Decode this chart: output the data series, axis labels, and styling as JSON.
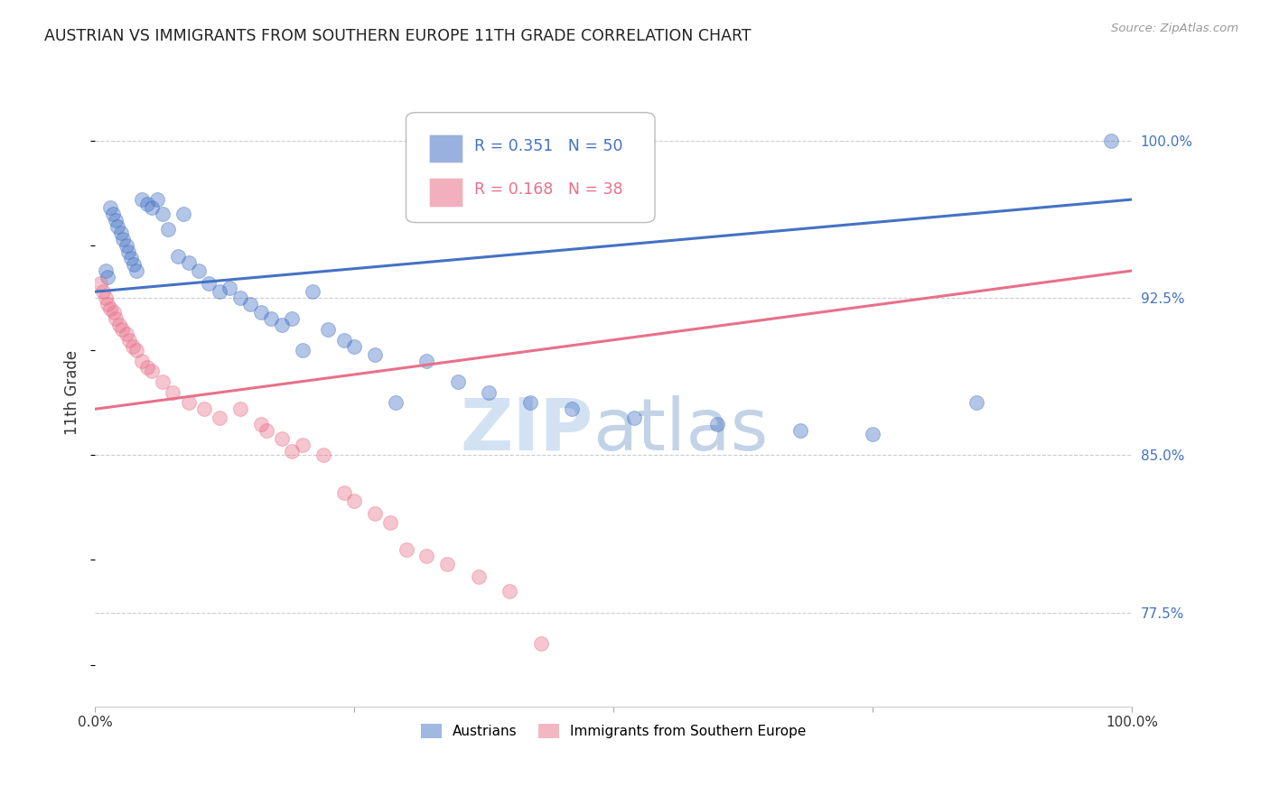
{
  "title": "AUSTRIAN VS IMMIGRANTS FROM SOUTHERN EUROPE 11TH GRADE CORRELATION CHART",
  "source": "Source: ZipAtlas.com",
  "ylabel": "11th Grade",
  "xlim": [
    0,
    100
  ],
  "ylim": [
    73,
    103
  ],
  "yticks": [
    77.5,
    85.0,
    92.5,
    100.0
  ],
  "xticks": [
    0,
    25,
    50,
    75,
    100
  ],
  "xtick_labels": [
    "0.0%",
    "",
    "",
    "",
    "100.0%"
  ],
  "ytick_labels": [
    "77.5%",
    "85.0%",
    "92.5%",
    "100.0%"
  ],
  "blue_color": "#4472C4",
  "pink_color": "#E8708A",
  "blue_label": "Austrians",
  "pink_label": "Immigrants from Southern Europe",
  "legend_R_blue": "R = 0.351",
  "legend_N_blue": "N = 50",
  "legend_R_pink": "R = 0.168",
  "legend_N_pink": "N = 38",
  "watermark_zip": "ZIP",
  "watermark_atlas": "atlas",
  "blue_scatter_x": [
    1.0,
    1.2,
    1.5,
    1.7,
    2.0,
    2.2,
    2.5,
    2.7,
    3.0,
    3.2,
    3.5,
    3.7,
    4.0,
    4.5,
    5.0,
    5.5,
    6.0,
    6.5,
    7.0,
    8.0,
    8.5,
    9.0,
    10.0,
    11.0,
    12.0,
    13.0,
    14.0,
    15.0,
    16.0,
    17.0,
    18.0,
    19.0,
    20.0,
    21.0,
    22.5,
    24.0,
    25.0,
    27.0,
    29.0,
    32.0,
    35.0,
    38.0,
    42.0,
    46.0,
    52.0,
    60.0,
    68.0,
    75.0,
    85.0,
    98.0
  ],
  "blue_scatter_y": [
    93.8,
    93.5,
    96.8,
    96.5,
    96.2,
    95.9,
    95.6,
    95.3,
    95.0,
    94.7,
    94.4,
    94.1,
    93.8,
    97.2,
    97.0,
    96.8,
    97.2,
    96.5,
    95.8,
    94.5,
    96.5,
    94.2,
    93.8,
    93.2,
    92.8,
    93.0,
    92.5,
    92.2,
    91.8,
    91.5,
    91.2,
    91.5,
    90.0,
    92.8,
    91.0,
    90.5,
    90.2,
    89.8,
    87.5,
    89.5,
    88.5,
    88.0,
    87.5,
    87.2,
    86.8,
    86.5,
    86.2,
    86.0,
    87.5,
    100.0
  ],
  "pink_scatter_x": [
    0.5,
    0.8,
    1.0,
    1.2,
    1.5,
    1.8,
    2.0,
    2.3,
    2.6,
    3.0,
    3.3,
    3.6,
    4.0,
    4.5,
    5.0,
    5.5,
    6.5,
    7.5,
    9.0,
    10.5,
    12.0,
    14.0,
    16.0,
    16.5,
    18.0,
    19.0,
    20.0,
    22.0,
    24.0,
    25.0,
    27.0,
    28.5,
    30.0,
    32.0,
    34.0,
    37.0,
    40.0,
    43.0
  ],
  "pink_scatter_y": [
    93.2,
    92.8,
    92.5,
    92.2,
    92.0,
    91.8,
    91.5,
    91.2,
    91.0,
    90.8,
    90.5,
    90.2,
    90.0,
    89.5,
    89.2,
    89.0,
    88.5,
    88.0,
    87.5,
    87.2,
    86.8,
    87.2,
    86.5,
    86.2,
    85.8,
    85.2,
    85.5,
    85.0,
    83.2,
    82.8,
    82.2,
    81.8,
    80.5,
    80.2,
    79.8,
    79.2,
    78.5,
    76.0
  ],
  "blue_line_x0": 0,
  "blue_line_x1": 100,
  "blue_line_y0": 92.8,
  "blue_line_y1": 97.2,
  "pink_line_x0": 0,
  "pink_line_x1": 100,
  "pink_line_y0": 87.2,
  "pink_line_y1": 93.8
}
